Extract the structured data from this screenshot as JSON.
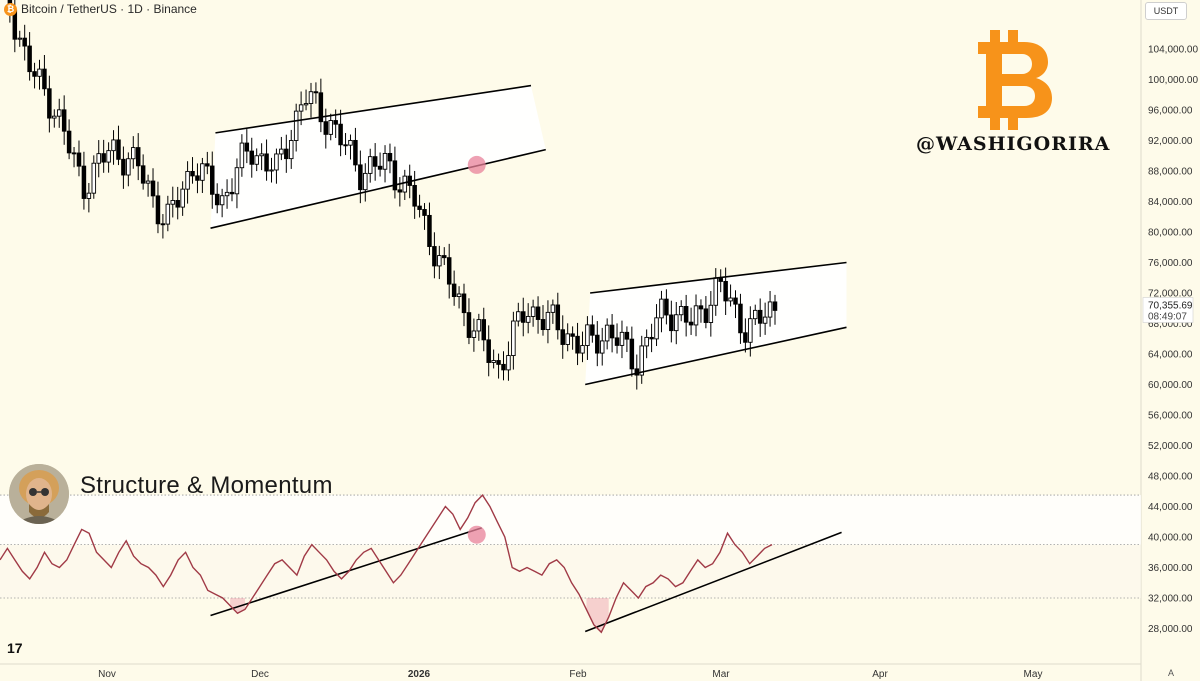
{
  "header": {
    "symbol_title": "Bitcoin / TetherUS · 1D · Binance",
    "coin_icon": "bitcoin-icon"
  },
  "unit_label": "USDT",
  "watermark": {
    "handle": "@WASHIGORIRA",
    "logo": "bitcoin-logo",
    "logo_color": "#f7931a"
  },
  "indicator": {
    "title": "Structure & Momentum",
    "avatar": "avatar-icon"
  },
  "branding": {
    "logo_text": "17"
  },
  "auto_label": "A",
  "colors": {
    "background": "#fefbea",
    "candle": "#000000",
    "oscillator": "#a03a46",
    "highlight": "#e8829a",
    "price_badge": "#ffffff"
  },
  "chart_data": [
    {
      "type": "candlestick",
      "title": "Bitcoin / TetherUS · 1D · Binance",
      "xlabel": "",
      "ylabel": "",
      "ylim": [
        24500,
        108000
      ],
      "y_ticks": [
        "104,000.00",
        "100,000.00",
        "96,000.00",
        "92,000.00",
        "88,000.00",
        "84,000.00",
        "80,000.00",
        "76,000.00",
        "72,000.00",
        "68,000.00",
        "64,000.00",
        "60,000.00",
        "56,000.00",
        "52,000.00",
        "48,000.00",
        "44,000.00",
        "40,000.00",
        "36,000.00",
        "32,000.00",
        "28,000.00"
      ],
      "x_ticks": [
        "Nov",
        "Dec",
        "2026",
        "Feb",
        "Mar",
        "Apr",
        "May"
      ],
      "x_ticks_bold": [
        "2026"
      ],
      "last_price": "70,355.69",
      "countdown": "08:49:07",
      "key_prices": [
        114000,
        102000,
        96000,
        86000,
        91000,
        88500,
        81000,
        89000,
        84000,
        91000,
        88000,
        98000,
        94000,
        88000,
        89000,
        84000,
        75000,
        68000,
        62000,
        70000,
        68000,
        65000,
        67000,
        63000,
        70000,
        68000,
        73000,
        67000,
        70400
      ],
      "overlays": [
        {
          "name": "upper-channel-1",
          "from": [
            "2025-11-23",
            93000
          ],
          "to": [
            "2026-01-26",
            99200
          ]
        },
        {
          "name": "lower-channel-1",
          "from": [
            "2025-11-22",
            80500
          ],
          "to": [
            "2026-01-29",
            90800
          ]
        },
        {
          "name": "upper-channel-2",
          "from": [
            "2026-02-07",
            72000
          ],
          "to": [
            "2026-03-31",
            76000
          ]
        },
        {
          "name": "lower-channel-2",
          "from": [
            "2026-02-06",
            60000
          ],
          "to": [
            "2026-03-31",
            67500
          ]
        }
      ],
      "markers": [
        {
          "name": "breakdown",
          "date": "2026-01-15",
          "value": 88800
        }
      ]
    },
    {
      "type": "line",
      "title": "Structure & Momentum",
      "ylim": [
        24500,
        48000
      ],
      "series": [
        {
          "values": [
            37000,
            38500,
            37000,
            35500,
            34500,
            36000,
            38000,
            36500,
            36000,
            37000,
            39000,
            41000,
            40500,
            38000,
            37000,
            36000,
            38000,
            39500,
            37500,
            36500,
            36000,
            35000,
            33500,
            35000,
            37000,
            38000,
            36000,
            35000,
            33000,
            32500,
            32000,
            31000,
            30000,
            30500,
            32000,
            33500,
            35000,
            36500,
            37000,
            36000,
            35000,
            37500,
            39000,
            38000,
            37000,
            35500,
            34500,
            35500,
            37000,
            38000,
            38500,
            37000,
            35500,
            34000,
            35000,
            36500,
            38000,
            39500,
            41000,
            42500,
            44000,
            43000,
            41000,
            42500,
            44500,
            45500,
            44000,
            42000,
            40000,
            36000,
            35500,
            36000,
            35500,
            35000,
            36500,
            37000,
            36000,
            34000,
            32500,
            30500,
            28500,
            27500,
            29500,
            32000,
            34000,
            33000,
            32000,
            33500,
            34000,
            35000,
            34500,
            33500,
            34000,
            35500,
            37000,
            36000,
            36500,
            38000,
            40500,
            39000,
            38000,
            36500,
            37500,
            38500,
            39000
          ]
        }
      ],
      "overlays": [
        {
          "name": "osc-trend-1",
          "from": [
            "2025-11-22",
            29700
          ],
          "to": [
            "2026-01-16",
            41200
          ]
        },
        {
          "name": "osc-trend-2",
          "from": [
            "2026-02-06",
            27600
          ],
          "to": [
            "2026-03-30",
            40600
          ]
        }
      ],
      "levels": [
        45500,
        39000,
        32000
      ],
      "markers": [
        {
          "name": "breakdown",
          "date": "2026-01-15",
          "value": 40300
        }
      ]
    }
  ]
}
